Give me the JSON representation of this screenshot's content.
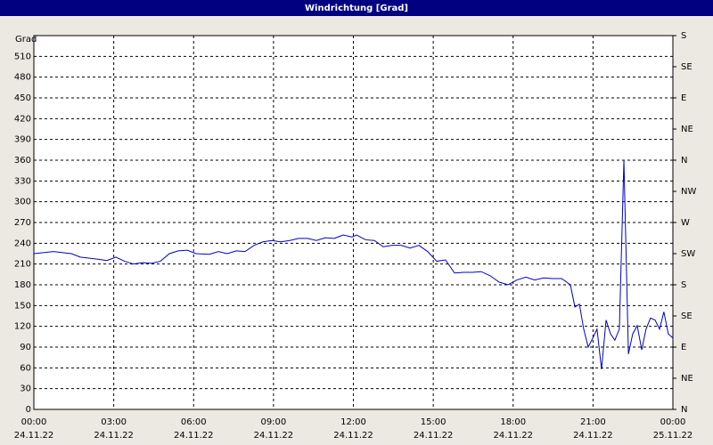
{
  "chart_data": {
    "type": "line",
    "title": "Windrichtung [Grad]",
    "y_label": "Grad",
    "x": [
      0,
      0.74,
      1.41,
      1.74,
      2.41,
      2.74,
      3.08,
      3.41,
      3.75,
      4.08,
      4.42,
      4.75,
      5.09,
      5.42,
      5.76,
      6.09,
      6.59,
      6.93,
      7.26,
      7.6,
      7.93,
      8.27,
      8.6,
      8.94,
      9.27,
      9.61,
      9.94,
      10.28,
      10.61,
      10.95,
      11.28,
      11.62,
      11.95,
      12.12,
      12.46,
      12.79,
      13.12,
      13.46,
      13.79,
      14.13,
      14.46,
      14.79,
      15.13,
      15.46,
      15.8,
      16.13,
      16.47,
      16.8,
      17.14,
      17.47,
      17.81,
      18.14,
      18.48,
      18.81,
      19.15,
      19.48,
      19.82,
      20.15,
      20.32,
      20.49,
      20.65,
      20.82,
      20.99,
      21.15,
      21.32,
      21.49,
      21.66,
      21.82,
      21.99,
      22.16,
      22.33,
      22.49,
      22.66,
      22.83,
      22.99,
      23.16,
      23.33,
      23.5,
      23.66,
      23.83,
      24
    ],
    "series": [
      {
        "name": "Windrichtung",
        "color": "#0000c8",
        "values": [
          225,
          228,
          225,
          220,
          217,
          215,
          220,
          214,
          210,
          212,
          211,
          214,
          225,
          229,
          230,
          225,
          224,
          228,
          225,
          229,
          228,
          237,
          242,
          244,
          242,
          244,
          247,
          247,
          244,
          248,
          247,
          252,
          249,
          252,
          245,
          244,
          235,
          237,
          237,
          233,
          237,
          228,
          214,
          216,
          197,
          198,
          198,
          199,
          193,
          184,
          180,
          187,
          191,
          187,
          190,
          189,
          189,
          180,
          148,
          152,
          116,
          90,
          103,
          116,
          58,
          129,
          109,
          100,
          116,
          360,
          80,
          109,
          121,
          86,
          116,
          132,
          129,
          116,
          141,
          109,
          103
        ]
      }
    ],
    "xlim": [
      0,
      24
    ],
    "xticks": [
      {
        "value": 0,
        "label": "00:00"
      },
      {
        "value": 3,
        "label": "03:00"
      },
      {
        "value": 6,
        "label": "06:00"
      },
      {
        "value": 9,
        "label": "09:00"
      },
      {
        "value": 12,
        "label": "12:00"
      },
      {
        "value": 15,
        "label": "15:00"
      },
      {
        "value": 18,
        "label": "18:00"
      },
      {
        "value": 21,
        "label": "21:00"
      },
      {
        "value": 24,
        "label": "00:00"
      }
    ],
    "xtick_dates": [
      "24.11.22",
      "24.11.22",
      "24.11.22",
      "24.11.22",
      "24.11.22",
      "24.11.22",
      "24.11.22",
      "24.11.22",
      "25.11.22"
    ],
    "ylim": [
      0,
      540
    ],
    "yticks": [
      0,
      30,
      60,
      90,
      120,
      150,
      180,
      210,
      240,
      270,
      300,
      330,
      360,
      390,
      420,
      450,
      480,
      510
    ],
    "y2lim": [
      0,
      540
    ],
    "y2ticks": [
      {
        "value": 0,
        "label": "N"
      },
      {
        "value": 45,
        "label": "NE"
      },
      {
        "value": 90,
        "label": "E"
      },
      {
        "value": 135,
        "label": "SE"
      },
      {
        "value": 180,
        "label": "S"
      },
      {
        "value": 225,
        "label": "SW"
      },
      {
        "value": 270,
        "label": "W"
      },
      {
        "value": 315,
        "label": "NW"
      },
      {
        "value": 360,
        "label": "N"
      },
      {
        "value": 405,
        "label": "NE"
      },
      {
        "value": 450,
        "label": "E"
      },
      {
        "value": 495,
        "label": "SE"
      },
      {
        "value": 540,
        "label": "S"
      }
    ],
    "grid": true
  }
}
